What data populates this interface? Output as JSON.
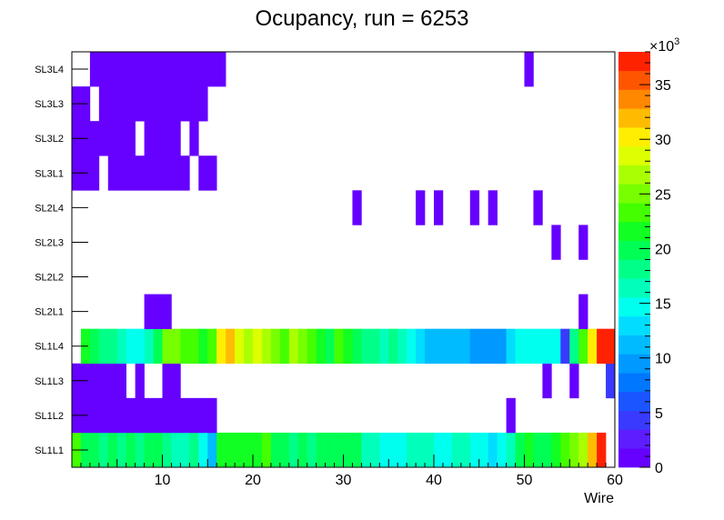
{
  "chart_data": {
    "type": "heatmap",
    "title": "Ocupancy, run = 6253",
    "xlabel": "Wire",
    "ylabel": "",
    "xlim": [
      0,
      60
    ],
    "x_ticks": [
      10,
      20,
      30,
      40,
      50,
      60
    ],
    "y_categories": [
      "SL1L1",
      "SL1L2",
      "SL1L3",
      "SL1L4",
      "SL2L1",
      "SL2L2",
      "SL2L3",
      "SL2L4",
      "SL3L1",
      "SL3L2",
      "SL3L3",
      "SL3L4"
    ],
    "colorbar": {
      "min": 0,
      "max": 38000,
      "ticks": [
        0,
        5,
        10,
        15,
        20,
        25,
        30,
        35
      ],
      "exponent_label": "×10",
      "exponent_power": "3"
    },
    "colors": [
      "#6600ff",
      "#5c1dff",
      "#3a3aff",
      "#1a55ff",
      "#0077ff",
      "#0099ff",
      "#00bbff",
      "#00ddff",
      "#00ffee",
      "#00ffbb",
      "#00ff88",
      "#00ff55",
      "#11ff22",
      "#44ff00",
      "#77ff00",
      "#aaff00",
      "#ddff00",
      "#ffee00",
      "#ffbb00",
      "#ff8800",
      "#ff5500",
      "#ff2200"
    ],
    "rows": {
      "SL3L4": [
        [
          2,
          16,
          800
        ],
        [
          50,
          50,
          800
        ]
      ],
      "SL3L3": [
        [
          0,
          1,
          800
        ],
        [
          3,
          14,
          800
        ]
      ],
      "SL3L2": [
        [
          0,
          6,
          800
        ],
        [
          8,
          11,
          800
        ],
        [
          13,
          13,
          800
        ]
      ],
      "SL3L1": [
        [
          0,
          2,
          800
        ],
        [
          4,
          12,
          800
        ],
        [
          14,
          15,
          800
        ]
      ],
      "SL2L4": [
        [
          31,
          31,
          800
        ],
        [
          38,
          38,
          800
        ],
        [
          40,
          40,
          800
        ],
        [
          44,
          44,
          800
        ],
        [
          46,
          46,
          800
        ],
        [
          51,
          51,
          800
        ]
      ],
      "SL2L3": [
        [
          53,
          53,
          800
        ],
        [
          56,
          56,
          800
        ]
      ],
      "SL2L2": [],
      "SL2L1": [
        [
          8,
          10,
          800
        ],
        [
          56,
          56,
          800
        ]
      ],
      "SL1L3": [
        [
          0,
          5,
          800
        ],
        [
          7,
          7,
          800
        ],
        [
          10,
          11,
          800
        ],
        [
          52,
          52,
          800
        ],
        [
          55,
          55,
          800
        ],
        [
          59,
          59,
          5000
        ]
      ],
      "SL1L2": [
        [
          0,
          15,
          800
        ],
        [
          48,
          48,
          800
        ]
      ],
      "SL1L4": [
        [
          1,
          1,
          21000
        ],
        [
          2,
          2,
          19500
        ],
        [
          3,
          3,
          18500
        ],
        [
          4,
          4,
          17500
        ],
        [
          5,
          5,
          16500
        ],
        [
          6,
          6,
          15000
        ],
        [
          7,
          7,
          14500
        ],
        [
          8,
          8,
          16000
        ],
        [
          9,
          9,
          19000
        ],
        [
          10,
          10,
          24500
        ],
        [
          11,
          11,
          25000
        ],
        [
          12,
          12,
          24000
        ],
        [
          13,
          13,
          22500
        ],
        [
          14,
          14,
          21000
        ],
        [
          15,
          15,
          23500
        ],
        [
          16,
          16,
          30000
        ],
        [
          17,
          17,
          31500
        ],
        [
          18,
          18,
          29000
        ],
        [
          19,
          19,
          27500
        ],
        [
          20,
          20,
          28000
        ],
        [
          21,
          21,
          26500
        ],
        [
          22,
          22,
          25000
        ],
        [
          23,
          23,
          24000
        ],
        [
          24,
          24,
          26000
        ],
        [
          25,
          25,
          25500
        ],
        [
          26,
          26,
          24000
        ],
        [
          27,
          27,
          22000
        ],
        [
          28,
          28,
          20000
        ],
        [
          29,
          29,
          23000
        ],
        [
          30,
          30,
          22000
        ],
        [
          31,
          31,
          20500
        ],
        [
          32,
          32,
          18500
        ],
        [
          33,
          33,
          17500
        ],
        [
          34,
          34,
          17000
        ],
        [
          35,
          35,
          18000
        ],
        [
          36,
          36,
          16500
        ],
        [
          37,
          37,
          14500
        ],
        [
          38,
          38,
          13500
        ],
        [
          39,
          39,
          11500
        ],
        [
          40,
          40,
          12000
        ],
        [
          41,
          41,
          12000
        ],
        [
          42,
          42,
          11500
        ],
        [
          43,
          43,
          11500
        ],
        [
          44,
          44,
          10000
        ],
        [
          45,
          45,
          10000
        ],
        [
          46,
          46,
          9500
        ],
        [
          47,
          47,
          10000
        ],
        [
          48,
          48,
          13000
        ],
        [
          49,
          49,
          14000
        ],
        [
          50,
          50,
          14500
        ],
        [
          51,
          51,
          14000
        ],
        [
          52,
          52,
          14500
        ],
        [
          53,
          53,
          14500
        ],
        [
          54,
          54,
          3500
        ],
        [
          55,
          55,
          18000
        ],
        [
          56,
          56,
          22500
        ],
        [
          57,
          57,
          30500
        ],
        [
          58,
          58,
          36500
        ],
        [
          59,
          59,
          36500
        ]
      ],
      "SL1L1": [
        [
          0,
          0,
          22500
        ],
        [
          1,
          1,
          20500
        ],
        [
          2,
          2,
          19500
        ],
        [
          3,
          3,
          18500
        ],
        [
          4,
          4,
          19000
        ],
        [
          5,
          5,
          18000
        ],
        [
          6,
          6,
          19500
        ],
        [
          7,
          7,
          18500
        ],
        [
          8,
          8,
          20000
        ],
        [
          9,
          9,
          19000
        ],
        [
          10,
          10,
          17500
        ],
        [
          11,
          11,
          17000
        ],
        [
          12,
          12,
          17000
        ],
        [
          13,
          13,
          18000
        ],
        [
          14,
          14,
          14000
        ],
        [
          15,
          15,
          11500
        ],
        [
          16,
          16,
          22000
        ],
        [
          17,
          17,
          22000
        ],
        [
          18,
          18,
          22000
        ],
        [
          19,
          19,
          21500
        ],
        [
          20,
          20,
          21500
        ],
        [
          21,
          21,
          22500
        ],
        [
          22,
          22,
          20500
        ],
        [
          23,
          23,
          19500
        ],
        [
          24,
          24,
          18500
        ],
        [
          25,
          25,
          19500
        ],
        [
          26,
          26,
          18000
        ],
        [
          27,
          27,
          19500
        ],
        [
          28,
          28,
          19500
        ],
        [
          29,
          29,
          20000
        ],
        [
          30,
          30,
          19500
        ],
        [
          31,
          31,
          19000
        ],
        [
          32,
          32,
          16000
        ],
        [
          33,
          33,
          16500
        ],
        [
          34,
          34,
          15500
        ],
        [
          35,
          35,
          15500
        ],
        [
          36,
          36,
          15000
        ],
        [
          37,
          37,
          16500
        ],
        [
          38,
          38,
          16500
        ],
        [
          39,
          39,
          16000
        ],
        [
          40,
          40,
          15500
        ],
        [
          41,
          41,
          15000
        ],
        [
          42,
          42,
          16000
        ],
        [
          43,
          43,
          16500
        ],
        [
          44,
          44,
          14500
        ],
        [
          45,
          45,
          15000
        ],
        [
          46,
          46,
          13500
        ],
        [
          47,
          47,
          14000
        ],
        [
          48,
          48,
          17000
        ],
        [
          49,
          49,
          19500
        ],
        [
          50,
          50,
          22000
        ],
        [
          51,
          51,
          20000
        ],
        [
          52,
          52,
          20500
        ],
        [
          53,
          53,
          21000
        ],
        [
          54,
          54,
          22500
        ],
        [
          55,
          55,
          24500
        ],
        [
          56,
          56,
          27500
        ],
        [
          57,
          57,
          32000
        ],
        [
          58,
          58,
          36500
        ]
      ]
    }
  }
}
